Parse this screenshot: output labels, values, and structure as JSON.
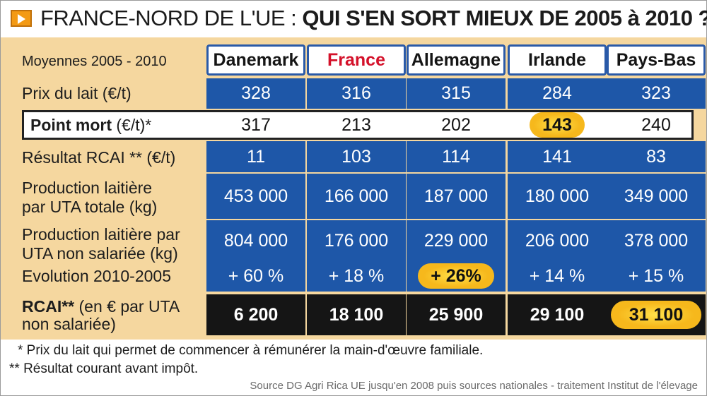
{
  "title": {
    "prefix": "FRANCE-NORD DE L'UE : ",
    "main": "QUI S'EN SORT MIEUX DE 2005 à 2010 ?"
  },
  "period_label": "Moyennes 2005 - 2010",
  "row_labels": {
    "prix": "Prix du lait (€/t)",
    "point_mort": "Point mort",
    "point_mort_suffix": " (€/t)*",
    "resultat": "Résultat RCAI ** (€/t)",
    "prod_totale_1": "Production laitière",
    "prod_totale_2": "par UTA totale (kg)",
    "prod_non_sal_1": "Production laitière par",
    "prod_non_sal_2": "UTA non salariée (kg)",
    "evolution": "Evolution 2010-2005",
    "rcai_bold": "RCAI**",
    "rcai_rest": " (en € par UTA",
    "rcai_2": "non salariée)"
  },
  "colors": {
    "blue": "#1e57a8",
    "tan": "#f5d79f",
    "black": "#151515",
    "highlight": "#f6b81c",
    "france": "#d4112a"
  },
  "chart_data": {
    "type": "table",
    "columns": [
      "Danemark",
      "France",
      "Allemagne",
      "Irlande",
      "Pays-Bas"
    ],
    "rows": [
      {
        "key": "prix",
        "values": [
          "328",
          "316",
          "315",
          "284",
          "323"
        ]
      },
      {
        "key": "point_mort",
        "values": [
          "317",
          "213",
          "202",
          "143",
          "240"
        ],
        "highlight_index": 3
      },
      {
        "key": "resultat",
        "values": [
          "11",
          "103",
          "114",
          "141",
          "83"
        ]
      },
      {
        "key": "prod_totale",
        "values": [
          "453 000",
          "166 000",
          "187 000",
          "180 000",
          "349 000"
        ]
      },
      {
        "key": "prod_non_sal",
        "values": [
          "804 000",
          "176 000",
          "229 000",
          "206 000",
          "378 000"
        ]
      },
      {
        "key": "evolution",
        "values": [
          "+ 60 %",
          "+ 18 %",
          "+ 26%",
          "+ 14 %",
          "+ 15 %"
        ],
        "highlight_index": 2
      },
      {
        "key": "rcai",
        "values": [
          "6 200",
          "18 100",
          "25 900",
          "29 100",
          "31 100"
        ],
        "highlight_index": 4
      }
    ]
  },
  "footnotes": {
    "f1": "* Prix du lait qui permet de commencer à rémunérer la main-d'œuvre familiale.",
    "f2": "** Résultat courant avant impôt."
  },
  "source": "Source DG Agri Rica UE jusqu'en 2008 puis sources nationales - traitement Institut de l'élevage"
}
